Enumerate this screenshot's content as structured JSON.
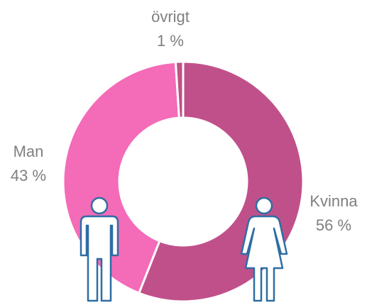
{
  "chart_data": {
    "type": "pie",
    "categories": [
      "Kvinna",
      "Man",
      "övrigt"
    ],
    "values": [
      56,
      43,
      1
    ],
    "value_labels": [
      "56 %",
      "43 %",
      "1 %"
    ],
    "colors": [
      "#c0508a",
      "#f46bb8",
      "#c0508a"
    ]
  }
}
